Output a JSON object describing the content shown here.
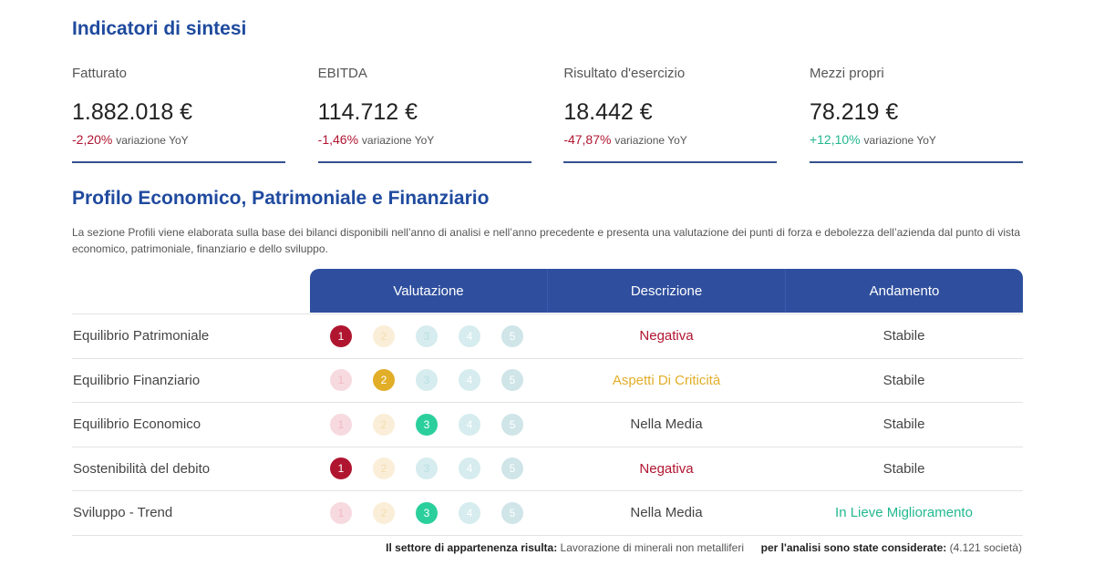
{
  "sections": {
    "sintesi_title": "Indicatori di sintesi",
    "profilo_title": "Profilo Economico, Patrimoniale e Finanziario",
    "profilo_description": "La sezione Profili viene elaborata sulla base dei bilanci disponibili nell’anno di analisi e nell’anno precedente e presenta una valutazione dei punti di forza e debolezza dell’azienda dal punto di vista economico, patrimoniale, finanziario e dello sviluppo."
  },
  "kpis": [
    {
      "label": "Fatturato",
      "value": "1.882.018 €",
      "delta": "-2,20%",
      "delta_suffix": "variazione YoY",
      "trend": "negative"
    },
    {
      "label": "EBITDA",
      "value": "114.712 €",
      "delta": "-1,46%",
      "delta_suffix": "variazione YoY",
      "trend": "negative"
    },
    {
      "label": "Risultato d'esercizio",
      "value": "18.442 €",
      "delta": "-47,87%",
      "delta_suffix": "variazione YoY",
      "trend": "negative"
    },
    {
      "label": "Mezzi propri",
      "value": "78.219 €",
      "delta": "+12,10%",
      "delta_suffix": "variazione YoY",
      "trend": "positive"
    }
  ],
  "table": {
    "headers": [
      "Valutazione",
      "Descrizione",
      "Andamento"
    ],
    "score_labels": [
      "1",
      "2",
      "3",
      "4",
      "5"
    ],
    "rows": [
      {
        "label": "Equilibrio Patrimoniale",
        "score": 1,
        "description": "Negativa",
        "trend": "Stabile"
      },
      {
        "label": "Equilibrio Finanziario",
        "score": 2,
        "description": "Aspetti Di Criticità",
        "trend": "Stabile"
      },
      {
        "label": "Equilibrio Economico",
        "score": 3,
        "description": "Nella Media",
        "trend": "Stabile"
      },
      {
        "label": "Sostenibilità del debito",
        "score": 1,
        "description": "Negativa",
        "trend": "Stabile"
      },
      {
        "label": "Sviluppo - Trend",
        "score": 3,
        "description": "Nella Media",
        "trend": "In Lieve Miglioramento"
      }
    ]
  },
  "footer": {
    "sector_label": "Il settore di appartenenza risulta:",
    "sector_value": "Lavorazione di minerali non metalliferi",
    "count_label": "per l'analisi sono state considerate:",
    "count_value": "(4.121 società)"
  },
  "colors": {
    "brand": "#1f4a9e",
    "header_bg": "#2f4f9e",
    "negative": "#b01530",
    "warning": "#e2ae28",
    "positive": "#22b890"
  }
}
